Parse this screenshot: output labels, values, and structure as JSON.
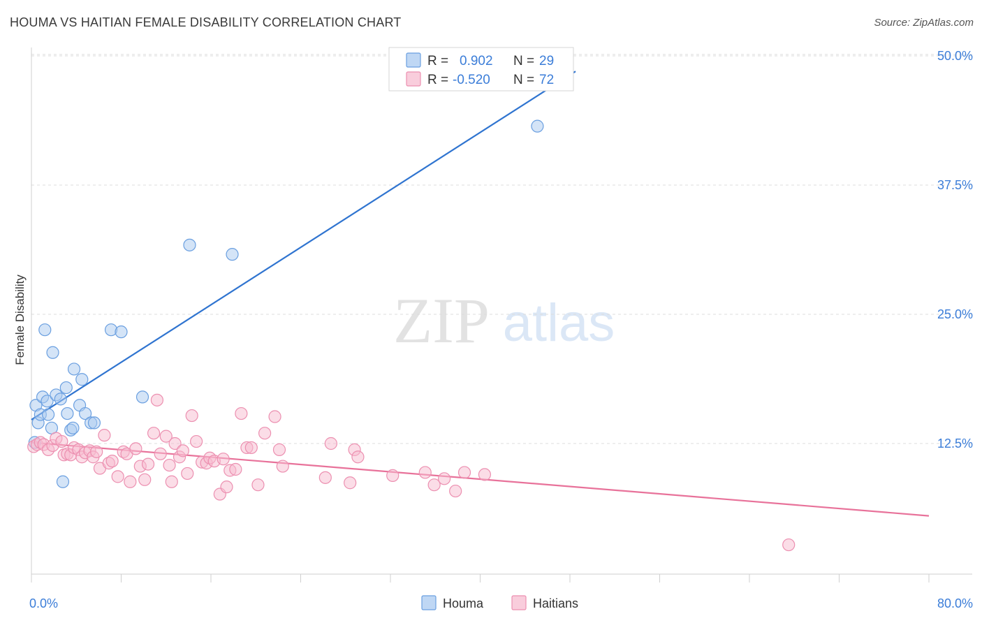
{
  "title": "HOUMA VS HAITIAN FEMALE DISABILITY CORRELATION CHART",
  "source": "Source: ZipAtlas.com",
  "watermark": {
    "zip": "ZIP",
    "atlas": "atlas"
  },
  "colors": {
    "houma_fill": "#a9c9f0",
    "houma_stroke": "#6a9fe0",
    "houma_line": "#2f74d0",
    "haitians_fill": "#f7bcd0",
    "haitians_stroke": "#ec8fb0",
    "haitians_line": "#e8729a",
    "tick_text": "#3b7dd8",
    "grid": "#dcdcdc"
  },
  "legend": {
    "rows": [
      {
        "r_label": "R =",
        "r_value": "0.902",
        "n_label": "N =",
        "n_value": "29",
        "series": "houma"
      },
      {
        "r_label": "R =",
        "r_value": "-0.520",
        "n_label": "N =",
        "n_value": "72",
        "series": "haitians"
      }
    ]
  },
  "bottom_legend": [
    {
      "label": "Houma",
      "series": "houma"
    },
    {
      "label": "Haitians",
      "series": "haitians"
    }
  ],
  "chart_data": {
    "type": "scatter",
    "title": "HOUMA VS HAITIAN FEMALE DISABILITY CORRELATION CHART",
    "xlabel": "",
    "ylabel": "Female Disability",
    "xlim": [
      0,
      80
    ],
    "ylim": [
      0,
      50
    ],
    "x_tick_labels": [
      {
        "value": 0,
        "label": "0.0%"
      },
      {
        "value": 80,
        "label": "80.0%"
      }
    ],
    "y_tick_labels": [
      {
        "value": 12.5,
        "label": "12.5%"
      },
      {
        "value": 25,
        "label": "25.0%"
      },
      {
        "value": 37.5,
        "label": "37.5%"
      },
      {
        "value": 50,
        "label": "50.0%"
      }
    ],
    "x_minor_ticks": [
      0,
      8,
      16,
      24,
      32,
      40,
      48,
      56,
      64,
      72,
      80
    ],
    "grid": true,
    "legend_position": "top-center",
    "series": [
      {
        "name": "Houma",
        "key": "houma",
        "r": 0.902,
        "n": 29,
        "trend": {
          "x": [
            0,
            48.5
          ],
          "y": [
            14.8,
            48.5
          ]
        },
        "points": [
          [
            0.3,
            12.6
          ],
          [
            0.4,
            16.2
          ],
          [
            0.6,
            14.5
          ],
          [
            0.8,
            15.3
          ],
          [
            1.0,
            17.0
          ],
          [
            1.2,
            23.5
          ],
          [
            1.4,
            16.6
          ],
          [
            1.5,
            15.3
          ],
          [
            1.8,
            14.0
          ],
          [
            1.9,
            21.3
          ],
          [
            2.2,
            17.2
          ],
          [
            2.6,
            16.8
          ],
          [
            2.8,
            8.8
          ],
          [
            3.1,
            17.9
          ],
          [
            3.2,
            15.4
          ],
          [
            3.5,
            13.8
          ],
          [
            3.7,
            14.0
          ],
          [
            3.8,
            19.7
          ],
          [
            4.3,
            16.2
          ],
          [
            4.5,
            18.7
          ],
          [
            4.8,
            15.4
          ],
          [
            5.3,
            14.5
          ],
          [
            5.6,
            14.5
          ],
          [
            7.1,
            23.5
          ],
          [
            8.0,
            23.3
          ],
          [
            9.9,
            17.0
          ],
          [
            14.1,
            31.7
          ],
          [
            17.9,
            30.8
          ],
          [
            45.1,
            43.2
          ]
        ]
      },
      {
        "name": "Haitians",
        "key": "haitians",
        "r": -0.52,
        "n": 72,
        "trend": {
          "x": [
            0,
            80
          ],
          "y": [
            12.6,
            5.5
          ]
        },
        "points": [
          [
            0.2,
            12.2
          ],
          [
            0.5,
            12.4
          ],
          [
            0.8,
            12.6
          ],
          [
            1.1,
            12.4
          ],
          [
            1.5,
            11.9
          ],
          [
            1.9,
            12.3
          ],
          [
            2.2,
            13.0
          ],
          [
            2.7,
            12.7
          ],
          [
            2.9,
            11.4
          ],
          [
            3.2,
            11.5
          ],
          [
            3.5,
            11.4
          ],
          [
            3.8,
            12.1
          ],
          [
            4.2,
            11.9
          ],
          [
            4.5,
            11.2
          ],
          [
            4.8,
            11.6
          ],
          [
            5.2,
            11.8
          ],
          [
            5.5,
            11.2
          ],
          [
            5.8,
            11.7
          ],
          [
            6.1,
            10.1
          ],
          [
            6.5,
            13.3
          ],
          [
            6.9,
            10.6
          ],
          [
            7.2,
            10.8
          ],
          [
            7.7,
            9.3
          ],
          [
            8.2,
            11.7
          ],
          [
            8.5,
            11.5
          ],
          [
            8.8,
            8.8
          ],
          [
            9.3,
            12.0
          ],
          [
            9.7,
            10.3
          ],
          [
            10.1,
            9.0
          ],
          [
            10.4,
            10.5
          ],
          [
            10.9,
            13.5
          ],
          [
            11.2,
            16.7
          ],
          [
            11.5,
            11.5
          ],
          [
            12.0,
            13.2
          ],
          [
            12.3,
            10.4
          ],
          [
            12.5,
            8.8
          ],
          [
            12.8,
            12.5
          ],
          [
            13.2,
            11.2
          ],
          [
            13.5,
            11.8
          ],
          [
            13.9,
            9.6
          ],
          [
            14.3,
            15.2
          ],
          [
            14.7,
            12.7
          ],
          [
            15.2,
            10.7
          ],
          [
            15.6,
            10.6
          ],
          [
            15.9,
            11.1
          ],
          [
            16.3,
            10.8
          ],
          [
            16.8,
            7.6
          ],
          [
            17.1,
            11.0
          ],
          [
            17.4,
            8.3
          ],
          [
            17.7,
            9.9
          ],
          [
            18.2,
            10.0
          ],
          [
            18.7,
            15.4
          ],
          [
            19.2,
            12.1
          ],
          [
            19.6,
            12.1
          ],
          [
            20.2,
            8.5
          ],
          [
            20.8,
            13.5
          ],
          [
            21.7,
            15.1
          ],
          [
            22.1,
            11.9
          ],
          [
            22.4,
            10.3
          ],
          [
            26.7,
            12.5
          ],
          [
            26.2,
            9.2
          ],
          [
            28.8,
            11.9
          ],
          [
            29.1,
            11.2
          ],
          [
            28.4,
            8.7
          ],
          [
            32.2,
            9.4
          ],
          [
            35.1,
            9.7
          ],
          [
            35.9,
            8.5
          ],
          [
            37.8,
            7.9
          ],
          [
            38.6,
            9.7
          ],
          [
            40.4,
            9.5
          ],
          [
            67.5,
            2.7
          ],
          [
            36.8,
            9.1
          ]
        ]
      }
    ]
  }
}
